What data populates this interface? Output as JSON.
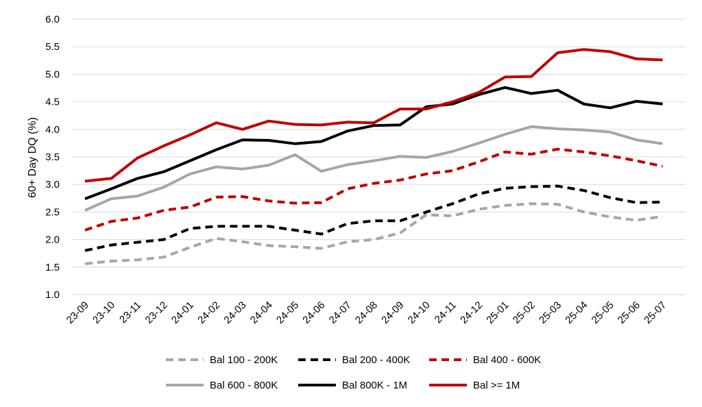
{
  "chart_data": {
    "type": "line",
    "ylabel": "60+ Day DQ (%)",
    "xlabel": "",
    "ylim": [
      1.0,
      6.0
    ],
    "yticks": [
      "1.0",
      "1.5",
      "2.0",
      "2.5",
      "3.0",
      "3.5",
      "4.0",
      "4.5",
      "5.0",
      "5.5",
      "6.0"
    ],
    "grid": "horizontal",
    "legend_position": "bottom",
    "categories": [
      "23-09",
      "23-10",
      "23-11",
      "23-12",
      "24-01",
      "24-02",
      "24-03",
      "24-04",
      "24-05",
      "24-06",
      "24-07",
      "24-08",
      "24-09",
      "24-10",
      "24-11",
      "24-12",
      "25-01",
      "25-02",
      "25-03",
      "25-04",
      "25-05",
      "25-06",
      "25-07"
    ],
    "series": [
      {
        "name": "Bal 100 - 200K",
        "color": "#a6a6a6",
        "dash": "dashed",
        "values": [
          1.56,
          1.61,
          1.63,
          1.68,
          1.86,
          2.02,
          1.96,
          1.89,
          1.87,
          1.84,
          1.96,
          2.0,
          2.12,
          2.45,
          2.43,
          2.55,
          2.62,
          2.65,
          2.64,
          2.5,
          2.41,
          2.35,
          2.42
        ]
      },
      {
        "name": "Bal 200 - 400K",
        "color": "#000000",
        "dash": "dashed",
        "values": [
          1.8,
          1.9,
          1.95,
          2.0,
          2.2,
          2.24,
          2.24,
          2.24,
          2.17,
          2.1,
          2.29,
          2.34,
          2.34,
          2.5,
          2.65,
          2.83,
          2.93,
          2.96,
          2.97,
          2.89,
          2.76,
          2.67,
          2.68
        ]
      },
      {
        "name": "Bal 400 - 600K",
        "color": "#c00000",
        "dash": "dashed",
        "values": [
          2.17,
          2.33,
          2.39,
          2.53,
          2.59,
          2.77,
          2.78,
          2.7,
          2.66,
          2.67,
          2.92,
          3.02,
          3.08,
          3.19,
          3.25,
          3.41,
          3.59,
          3.55,
          3.64,
          3.59,
          3.52,
          3.43,
          3.33
        ]
      },
      {
        "name": "Bal 600 - 800K",
        "color": "#a6a6a6",
        "dash": "solid",
        "values": [
          2.53,
          2.74,
          2.79,
          2.95,
          3.19,
          3.32,
          3.28,
          3.35,
          3.54,
          3.24,
          3.36,
          3.43,
          3.51,
          3.49,
          3.6,
          3.75,
          3.91,
          4.05,
          4.01,
          3.99,
          3.95,
          3.81,
          3.74
        ]
      },
      {
        "name": "Bal 800K - 1M",
        "color": "#000000",
        "dash": "solid",
        "values": [
          2.74,
          2.92,
          3.11,
          3.23,
          3.43,
          3.63,
          3.81,
          3.8,
          3.74,
          3.78,
          3.97,
          4.07,
          4.08,
          4.41,
          4.46,
          4.63,
          4.76,
          4.65,
          4.71,
          4.46,
          4.39,
          4.51,
          4.46
        ]
      },
      {
        "name": "Bal >= 1M",
        "color": "#c00000",
        "dash": "solid",
        "values": [
          3.06,
          3.11,
          3.48,
          3.7,
          3.9,
          4.12,
          4.0,
          4.15,
          4.09,
          4.08,
          4.13,
          4.12,
          4.37,
          4.37,
          4.5,
          4.67,
          4.95,
          4.96,
          5.39,
          5.45,
          5.41,
          5.28,
          5.26
        ]
      }
    ]
  }
}
